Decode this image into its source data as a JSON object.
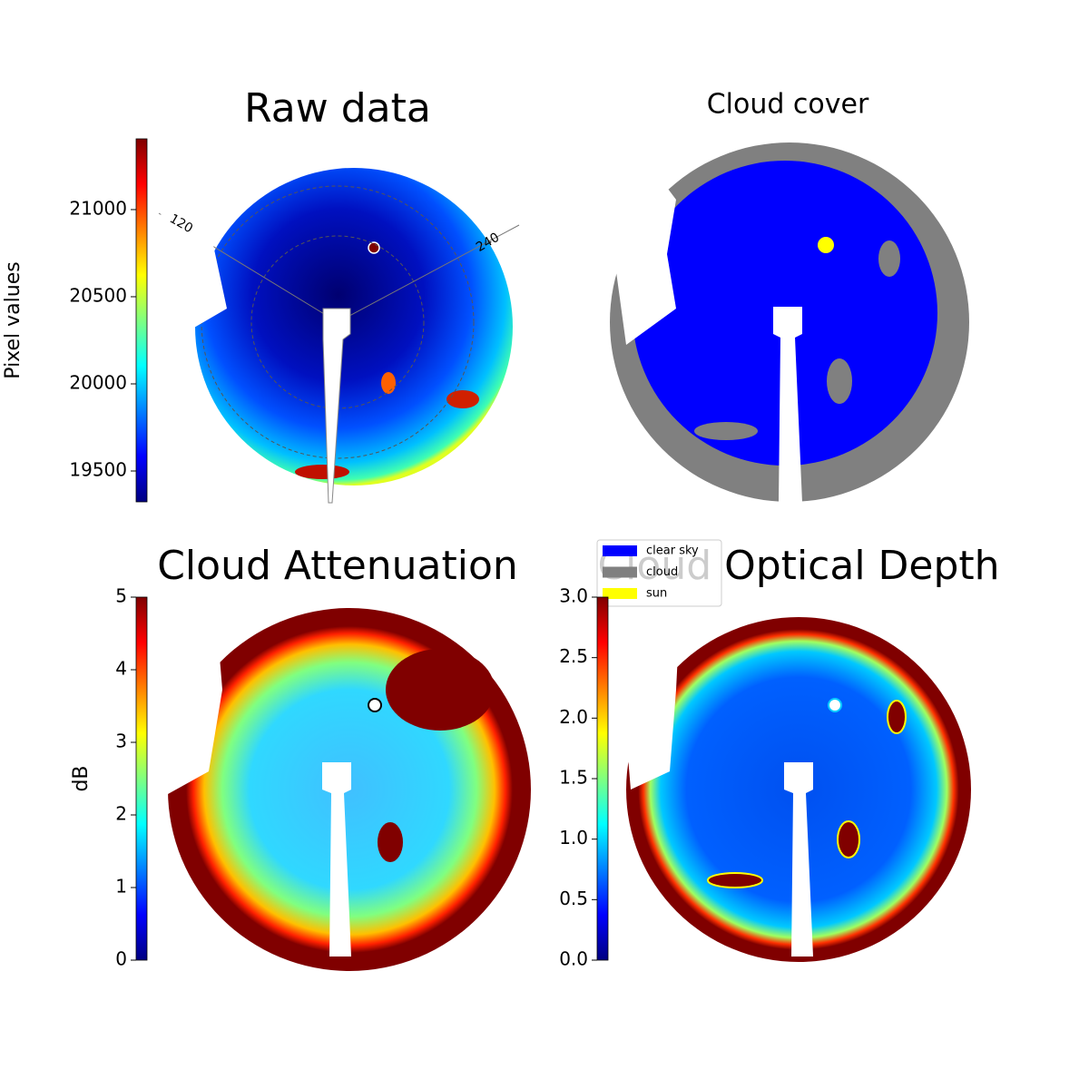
{
  "chart_data": [
    {
      "type": "image",
      "title": "Raw data",
      "colorbar_label": "Pixel values",
      "colormap": "jet",
      "clim": [
        19323,
        21406
      ],
      "ticks": [
        19500,
        20000,
        20500,
        21000
      ],
      "annotations": [
        "120",
        "240"
      ]
    },
    {
      "type": "image",
      "title": "Cloud cover",
      "legend": [
        {
          "name": "clear sky",
          "color": "#0000ff"
        },
        {
          "name": "cloud",
          "color": "#808080"
        },
        {
          "name": "sun",
          "color": "#ffff00"
        }
      ]
    },
    {
      "type": "image",
      "title": "Cloud Attenuation",
      "colorbar_label": "dB",
      "colormap": "jet",
      "clim": [
        0,
        5
      ],
      "ticks": [
        0,
        1,
        2,
        3,
        4,
        5
      ]
    },
    {
      "type": "image",
      "title": "Cloud Optical Depth",
      "colormap": "jet",
      "clim": [
        0,
        3
      ],
      "ticks": [
        {
          "value": 0,
          "label": "0.0"
        },
        0.5,
        {
          "value": 1,
          "label": "1.0"
        },
        1.5,
        {
          "value": 2,
          "label": "2.0"
        },
        2.5,
        {
          "value": 3,
          "label": "3.0"
        }
      ]
    }
  ]
}
